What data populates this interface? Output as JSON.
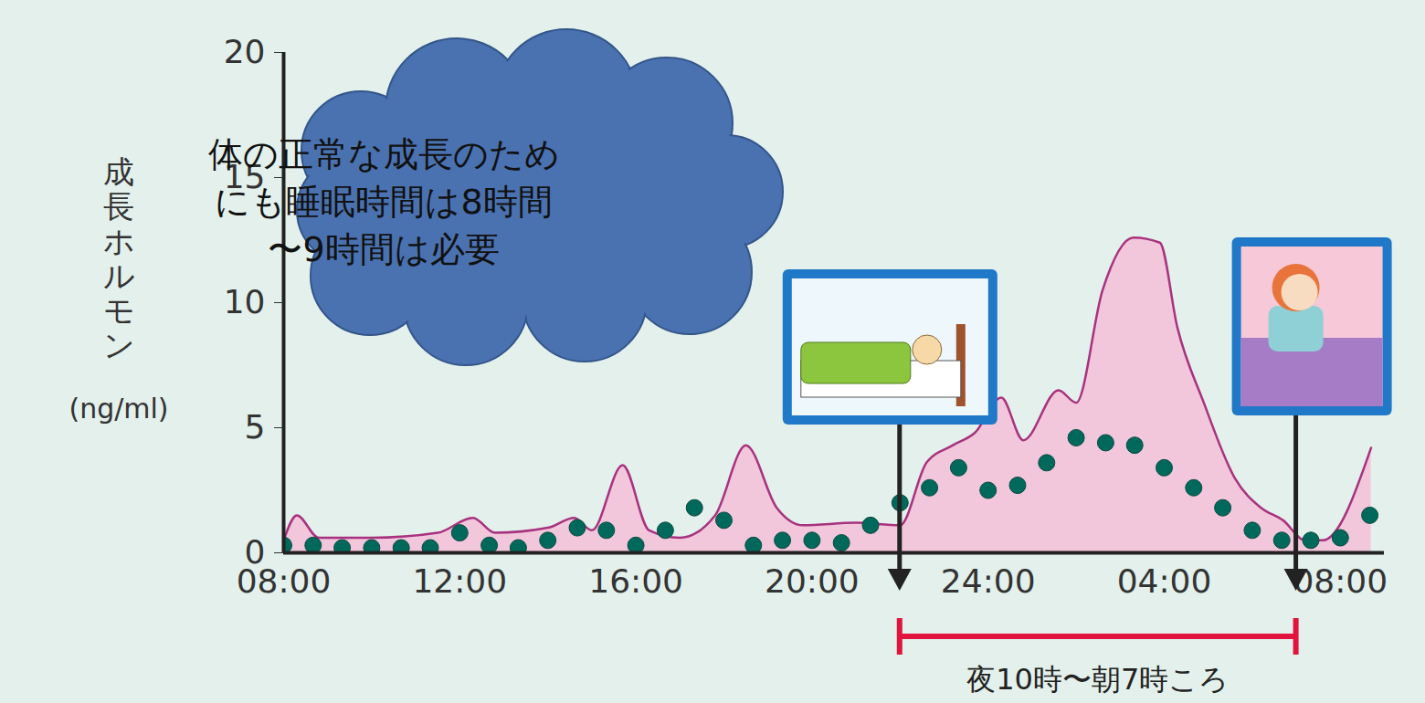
{
  "chart_data": {
    "type": "line",
    "y_label": "成長ホルモン (ng/ml)",
    "annotation": "体の正常な成長のためにも睡眠時間は8時間〜9時間は必要",
    "period_label": "夜10時〜朝7時ころ",
    "sleep_period": [
      22,
      31
    ],
    "xlim": [
      8,
      33
    ],
    "xticks": [
      {
        "value": 8,
        "label": "08:00"
      },
      {
        "value": 12,
        "label": "12:00"
      },
      {
        "value": 16,
        "label": "16:00"
      },
      {
        "value": 20,
        "label": "20:00"
      },
      {
        "value": 24,
        "label": "24:00"
      },
      {
        "value": 28,
        "label": "04:00"
      },
      {
        "value": 32,
        "label": "08:00"
      }
    ],
    "ylim": [
      0,
      20
    ],
    "yticks": [
      0,
      5,
      10,
      15,
      20
    ],
    "series": [
      {
        "type": "area",
        "color": "#a8327f",
        "x": [
          8.0,
          8.3,
          8.8,
          10.0,
          11.5,
          12.3,
          12.8,
          14.0,
          14.6,
          15.0,
          15.7,
          16.3,
          17.0,
          17.8,
          18.5,
          19.2,
          19.8,
          21.0,
          22.0,
          22.6,
          23.2,
          23.7,
          24.3,
          24.8,
          25.6,
          26.0,
          26.6,
          27.3,
          27.9,
          28.3,
          28.9,
          29.6,
          30.2,
          30.7,
          31.2,
          31.6,
          32.7
        ],
        "values": [
          0.5,
          1.5,
          0.6,
          0.6,
          0.8,
          1.4,
          0.8,
          1.0,
          1.4,
          0.9,
          3.5,
          0.9,
          0.6,
          1.5,
          4.3,
          1.8,
          1.1,
          1.2,
          1.1,
          3.6,
          4.3,
          4.8,
          6.2,
          4.5,
          6.5,
          6.0,
          10.5,
          12.6,
          12.4,
          9.0,
          6.0,
          3.0,
          1.8,
          1.3,
          0.5,
          0.5,
          4.2
        ]
      },
      {
        "type": "scatter",
        "color": "#00695c",
        "marker": "circle",
        "x": [
          8,
          8.67,
          9.33,
          10,
          10.67,
          11.33,
          12,
          12.67,
          13.33,
          14,
          14.67,
          15.33,
          16,
          16.67,
          17.33,
          18,
          18.67,
          19.33,
          20,
          20.67,
          21.33,
          22,
          22.67,
          23.33,
          24,
          24.67,
          25.33,
          26,
          26.67,
          27.33,
          28,
          28.67,
          29.33,
          30,
          30.67,
          31.33,
          32,
          32.67
        ],
        "values": [
          0.3,
          0.3,
          0.2,
          0.2,
          0.2,
          0.2,
          0.8,
          0.3,
          0.2,
          0.5,
          1.0,
          0.9,
          0.3,
          0.9,
          1.8,
          1.3,
          0.3,
          0.5,
          0.5,
          0.4,
          1.1,
          2.0,
          2.6,
          3.4,
          2.5,
          2.7,
          3.6,
          4.6,
          4.4,
          4.3,
          3.4,
          2.6,
          1.8,
          0.9,
          0.5,
          0.5,
          0.6,
          1.5
        ]
      }
    ]
  }
}
